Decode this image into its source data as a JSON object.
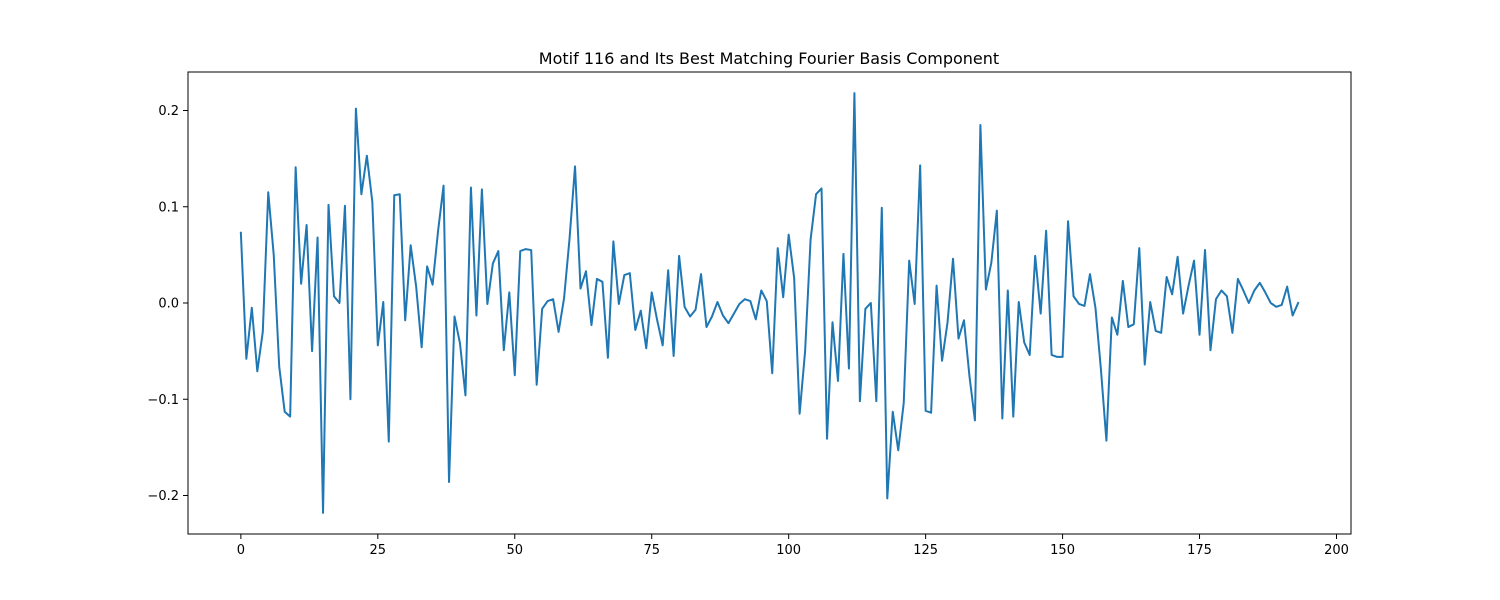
{
  "chart_data": {
    "type": "line",
    "title": "Motif 116 and Its Best Matching Fourier Basis Component",
    "xlabel": "",
    "ylabel": "",
    "xlim": [
      -9.65,
      202.65
    ],
    "ylim": [
      -0.24,
      0.24
    ],
    "grid": false,
    "legend": "none",
    "x_ticks": [
      0,
      25,
      50,
      75,
      100,
      125,
      150,
      175,
      200
    ],
    "x_tick_labels": [
      "0",
      "25",
      "50",
      "75",
      "100",
      "125",
      "150",
      "175",
      "200"
    ],
    "y_ticks": [
      -0.2,
      -0.1,
      0.0,
      0.1,
      0.2
    ],
    "y_tick_labels": [
      "−0.2",
      "−0.1",
      "0.0",
      "0.1",
      "0.2"
    ],
    "series": [
      {
        "color": "#1f77b4",
        "x_start": 0,
        "x_step": 1,
        "values": [
          0.073,
          -0.058,
          -0.005,
          -0.071,
          -0.03,
          0.115,
          0.05,
          -0.066,
          -0.113,
          -0.118,
          0.141,
          0.02,
          0.081,
          -0.05,
          0.068,
          -0.218,
          0.102,
          0.007,
          0.0,
          0.101,
          -0.1,
          0.202,
          0.113,
          0.153,
          0.105,
          -0.044,
          0.001,
          -0.144,
          0.112,
          0.113,
          -0.018,
          0.06,
          0.017,
          -0.046,
          0.038,
          0.019,
          0.075,
          0.122,
          -0.186,
          -0.014,
          -0.042,
          -0.096,
          0.12,
          -0.013,
          0.118,
          -0.001,
          0.041,
          0.054,
          -0.049,
          0.011,
          -0.075,
          0.054,
          0.056,
          0.055,
          -0.085,
          -0.006,
          0.002,
          0.004,
          -0.03,
          0.005,
          0.067,
          0.142,
          0.015,
          0.033,
          -0.023,
          0.025,
          0.022,
          -0.057,
          0.064,
          -0.001,
          0.029,
          0.031,
          -0.028,
          -0.008,
          -0.047,
          0.011,
          -0.018,
          -0.044,
          0.034,
          -0.055,
          0.049,
          -0.004,
          -0.014,
          -0.007,
          0.03,
          -0.025,
          -0.014,
          0.001,
          -0.013,
          -0.021,
          -0.011,
          -0.001,
          0.004,
          0.002,
          -0.017,
          0.013,
          0.002,
          -0.073,
          0.057,
          0.006,
          0.071,
          0.026,
          -0.115,
          -0.05,
          0.066,
          0.113,
          0.119,
          -0.141,
          -0.02,
          -0.081,
          0.051,
          -0.068,
          0.218,
          -0.102,
          -0.006,
          0.0,
          -0.102,
          0.099,
          -0.203,
          -0.113,
          -0.153,
          -0.104,
          0.044,
          -0.001,
          0.143,
          -0.112,
          -0.114,
          0.018,
          -0.06,
          -0.02,
          0.046,
          -0.037,
          -0.018,
          -0.076,
          -0.122,
          0.185,
          0.014,
          0.042,
          0.096,
          -0.12,
          0.013,
          -0.118,
          0.001,
          -0.041,
          -0.054,
          0.049,
          -0.011,
          0.075,
          -0.054,
          -0.056,
          -0.056,
          0.085,
          0.007,
          -0.001,
          -0.003,
          0.03,
          -0.005,
          -0.069,
          -0.143,
          -0.015,
          -0.033,
          0.023,
          -0.025,
          -0.022,
          0.057,
          -0.064,
          0.001,
          -0.029,
          -0.031,
          0.027,
          0.009,
          0.048,
          -0.011,
          0.018,
          0.044,
          -0.033,
          0.055,
          -0.049,
          0.004,
          0.013,
          0.007,
          -0.031,
          0.025,
          0.013,
          0.0,
          0.013,
          0.021,
          0.011,
          0.0,
          -0.004,
          -0.002,
          0.017,
          -0.013,
          0.0
        ]
      }
    ]
  }
}
